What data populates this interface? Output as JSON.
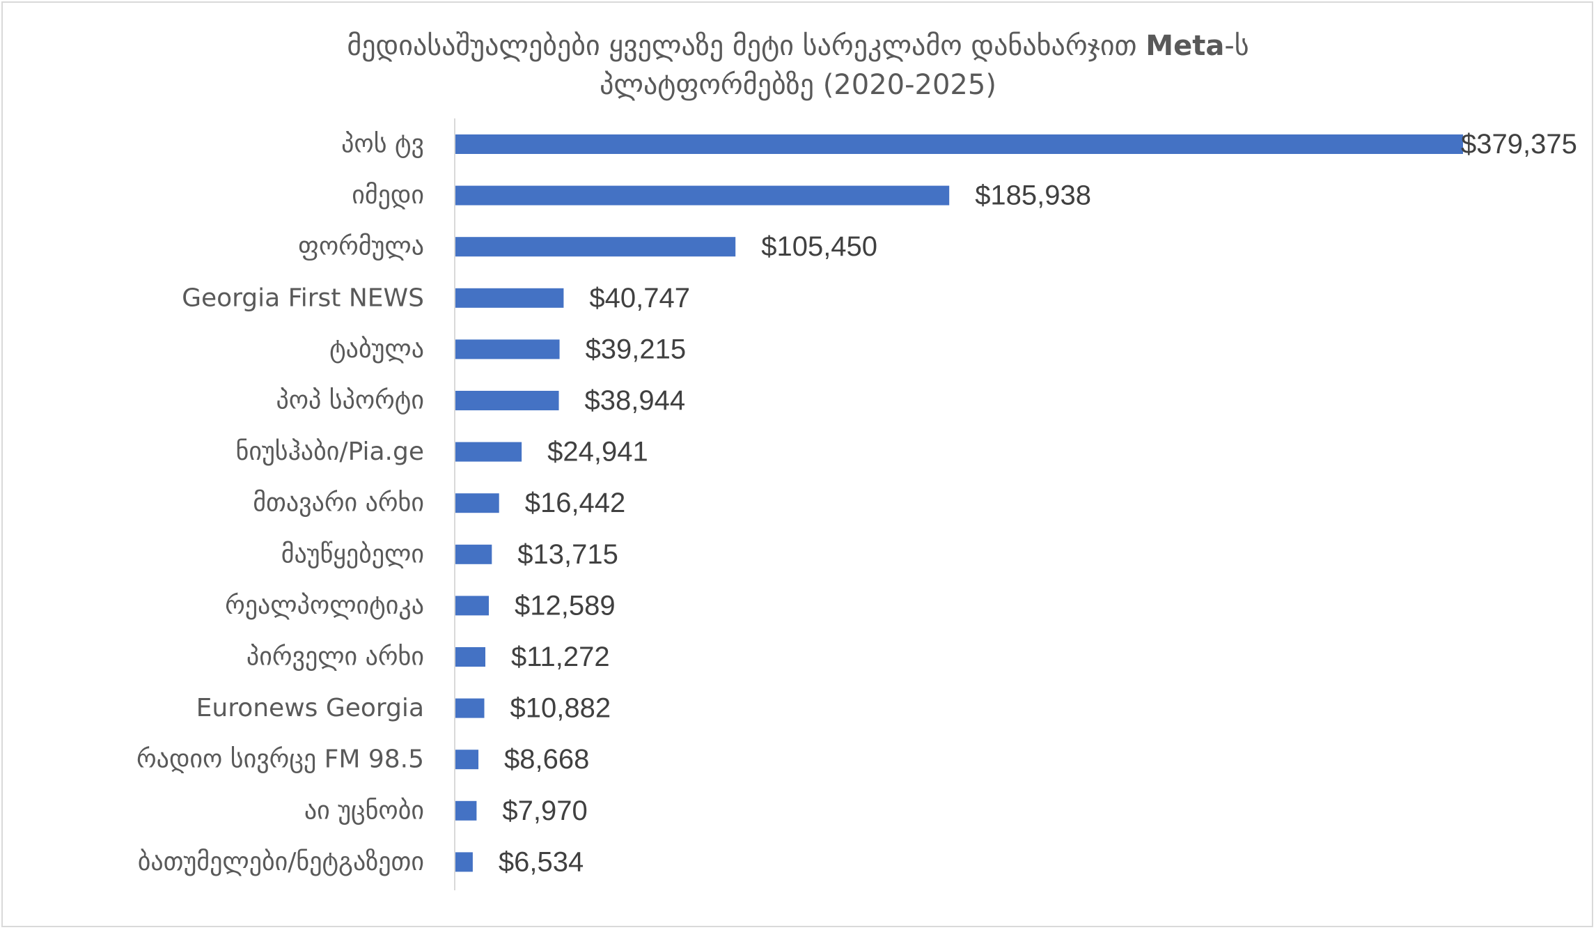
{
  "chart_data": {
    "type": "bar",
    "orientation": "horizontal",
    "title_parts": [
      "მედიასაშუალებები ყველაზე მეტი სარეკლამო დანახარჯით ",
      "Meta",
      "-ს"
    ],
    "title_line2": "პლატფორმებზე (2020-2025)",
    "categories": [
      "პოს ტვ",
      "იმედი",
      "ფორმულა",
      "Georgia First NEWS",
      "ტაბულა",
      "პოპ სპორტი",
      "ნიუსჰაბი/Pia.ge",
      "მთავარი არხი",
      "მაუწყებელი",
      "რეალპოლიტიკა",
      "პირველი არხი",
      "Euronews Georgia",
      "რადიო სივრცე FM 98.5",
      "აი უცნობი",
      "ბათუმელები/ნეტგაზეთი"
    ],
    "values": [
      379375,
      185938,
      105450,
      40747,
      39215,
      38944,
      24941,
      16442,
      13715,
      12589,
      11272,
      10882,
      8668,
      7970,
      6534
    ],
    "value_labels": [
      "$379,375",
      "$185,938",
      "$105,450",
      "$40,747",
      "$39,215",
      "$38,944",
      "$24,941",
      "$16,442",
      "$13,715",
      "$12,589",
      "$11,272",
      "$10,882",
      "$8,668",
      "$7,970",
      "$6,534"
    ],
    "xlim": [
      0,
      379375
    ],
    "grid": false,
    "bar_color": "#4472c4",
    "axis_color": "#d9d9d9"
  }
}
